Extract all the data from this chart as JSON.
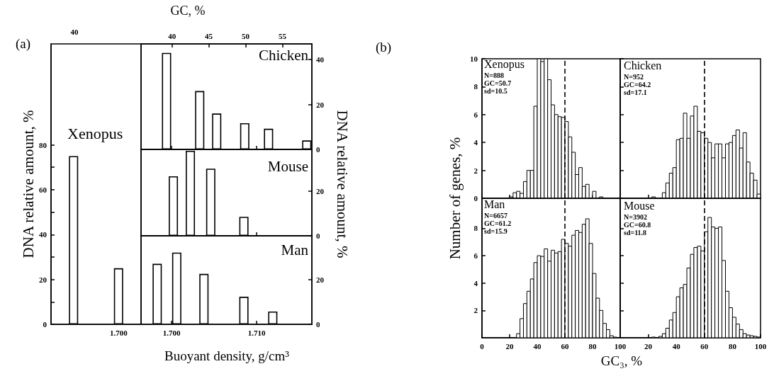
{
  "chart_data": [
    {
      "type": "bar",
      "title": "Xenopus",
      "ylabel": "DNA relative amount, %",
      "annotations": [
        "(a)",
        "40"
      ],
      "categories": [
        null,
        "1.700"
      ],
      "values": [
        75,
        25
      ],
      "color": "#ffffff",
      "ylim": [
        0,
        125
      ],
      "yticks": [
        0,
        {
          "value": 10,
          "label": null
        },
        20,
        {
          "value": 30,
          "label": null
        },
        40,
        {
          "value": 50,
          "label": null
        },
        60,
        {
          "value": 70,
          "label": null
        },
        80
      ]
    },
    {
      "type": "bar",
      "title": "Chicken",
      "x2label": "GC, %",
      "x": [
        1.6994,
        1.7033,
        1.7053,
        1.7086,
        1.7114,
        1.7159
      ],
      "values": [
        43,
        26,
        16,
        11.7,
        9.2,
        4
      ],
      "color": "#ffffff",
      "xlim": [
        1.6964,
        1.7165
      ],
      "xticks": [
        {
          "value": 1.7,
          "label": null
        },
        {
          "value": 1.71,
          "label": null
        }
      ],
      "x2lim": [
        35.8,
        59.0
      ],
      "x2ticks": [
        40,
        45,
        50,
        55
      ],
      "ylim": [
        0,
        47
      ],
      "yticks": [
        0,
        20,
        40
      ],
      "tick_labels": "y"
    },
    {
      "type": "bar",
      "title": "Mouse",
      "ylabel": "DNA relative amount, %",
      "x": [
        1.7002,
        1.7022,
        1.7046,
        1.7085
      ],
      "values": [
        26.6,
        38,
        30,
        8.5
      ],
      "color": "#ffffff",
      "xlim": [
        1.6964,
        1.7165
      ],
      "xticks": [
        {
          "value": 1.7,
          "label": null
        },
        {
          "value": 1.71,
          "label": null
        }
      ],
      "ylim": [
        0,
        38.6
      ],
      "yticks": [
        0,
        20
      ],
      "tick_labels": "y"
    },
    {
      "type": "bar",
      "title": "Man",
      "xlabel": "Buoyant density, g/cm³",
      "x": [
        1.6983,
        1.7006,
        1.7038,
        1.7085,
        1.7119
      ],
      "values": [
        27,
        32,
        22.5,
        12.3,
        5.7
      ],
      "color": "#ffffff",
      "xlim": [
        1.6964,
        1.7165
      ],
      "xticks": [
        {
          "value": 1.7,
          "label": "1.700"
        },
        {
          "value": 1.71,
          "label": "1.710"
        }
      ],
      "ylim": [
        0,
        39.5
      ],
      "yticks": [
        0,
        20
      ]
    },
    {
      "type": "histogram",
      "title": "Xenopus",
      "annotations": [
        "(b)",
        "N=888",
        "GC=50.7",
        "sd=10.5"
      ],
      "color": "#ffffff",
      "bins": [
        0,
        2.5,
        5,
        7.5,
        10,
        12.5,
        15,
        17.5,
        20,
        22.5,
        25,
        27.5,
        30,
        32.5,
        35,
        37.5,
        40,
        42.5,
        45,
        47.5,
        50,
        52.5,
        55,
        57.5,
        60,
        62.5,
        65,
        67.5,
        70,
        72.5,
        75,
        77.5,
        80,
        82.5,
        85,
        87.5,
        90,
        92.5,
        95,
        97.5,
        100
      ],
      "values": [
        0,
        0,
        0,
        0,
        0,
        0,
        0,
        0,
        0.1,
        0.4,
        0.5,
        0.35,
        1.2,
        2.0,
        2.0,
        6.6,
        10,
        9.8,
        10,
        8.5,
        6.7,
        6.0,
        5.85,
        5.8,
        5.5,
        4.4,
        3.3,
        1.7,
        2.2,
        0.85,
        1.0,
        0,
        0.5,
        0,
        0.1,
        0,
        0,
        0,
        0,
        0
      ],
      "xlim": [
        0,
        100
      ],
      "xticks": [
        0,
        20,
        40,
        60,
        80,
        100
      ],
      "ylim": [
        0,
        10
      ],
      "yticks": [
        0,
        2,
        4,
        6,
        8,
        10
      ],
      "tick_labels": "y",
      "ref_lines": [
        {
          "axis": "x",
          "value": 60,
          "line_style": "dashed"
        }
      ]
    },
    {
      "type": "histogram",
      "title": "Chicken",
      "annotations": [
        "N=952",
        "GC=64.2",
        "sd=17.1"
      ],
      "color": "#ffffff",
      "bins": [
        0,
        2.5,
        5,
        7.5,
        10,
        12.5,
        15,
        17.5,
        20,
        22.5,
        25,
        27.5,
        30,
        32.5,
        35,
        37.5,
        40,
        42.5,
        45,
        47.5,
        50,
        52.5,
        55,
        57.5,
        60,
        62.5,
        65,
        67.5,
        70,
        72.5,
        75,
        77.5,
        80,
        82.5,
        85,
        87.5,
        90,
        92.5,
        95,
        97.5,
        100
      ],
      "values": [
        0,
        0,
        0,
        0,
        0,
        0,
        0,
        0,
        0,
        0.1,
        0,
        0,
        0.4,
        1.1,
        1.8,
        2.2,
        4.2,
        4.3,
        6.1,
        4.3,
        5.9,
        6.6,
        4.8,
        4.7,
        4.3,
        4.0,
        2.9,
        3.9,
        3.9,
        2.9,
        3.9,
        4.0,
        4.5,
        4.9,
        3.6,
        4.7,
        2.6,
        1.8,
        1.3,
        0.3
      ],
      "xlim": [
        0,
        100
      ],
      "xticks": [
        0,
        20,
        40,
        60,
        80,
        100
      ],
      "ylim": [
        0,
        10
      ],
      "yticks": [
        0,
        2,
        4,
        6,
        8,
        10
      ],
      "tick_labels": false,
      "ref_lines": [
        {
          "axis": "x",
          "value": 60,
          "line_style": "dashed"
        }
      ]
    },
    {
      "type": "histogram",
      "title": "Man",
      "ylabel": "Number of genes, %",
      "annotations": [
        "N=6657",
        "GC=61.2",
        "sd=15.9"
      ],
      "color": "#ffffff",
      "bins": [
        0,
        2.5,
        5,
        7.5,
        10,
        12.5,
        15,
        17.5,
        20,
        22.5,
        25,
        27.5,
        30,
        32.5,
        35,
        37.5,
        40,
        42.5,
        45,
        47.5,
        50,
        52.5,
        55,
        57.5,
        60,
        62.5,
        65,
        67.5,
        70,
        72.5,
        75,
        77.5,
        80,
        82.5,
        85,
        87.5,
        90,
        92.5,
        95,
        97.5,
        100
      ],
      "values": [
        0,
        0,
        0,
        0,
        0,
        0,
        0,
        0,
        0,
        0,
        0.3,
        1.4,
        2.5,
        3.4,
        4.3,
        5.5,
        6.0,
        5.95,
        6.5,
        5.6,
        6.4,
        6.2,
        6.3,
        7.2,
        6.9,
        6.7,
        7.5,
        7.85,
        7.7,
        8.3,
        8.7,
        6.9,
        4.7,
        2.9,
        2.0,
        1.05,
        0.6,
        0.15,
        0.05,
        0
      ],
      "xlim": [
        0,
        100
      ],
      "xticks": [
        0,
        20,
        40,
        60,
        80,
        100
      ],
      "ylim": [
        0,
        10.2
      ],
      "yticks": [
        2,
        4,
        6,
        8
      ],
      "ref_lines": [
        {
          "axis": "x",
          "value": 60,
          "line_style": "dashed"
        }
      ]
    },
    {
      "type": "histogram",
      "title": "Mouse",
      "xlabel": "GC₃, %",
      "annotations": [
        "N=3902",
        "GC=60.8",
        "sd=11.8"
      ],
      "color": "#ffffff",
      "bins": [
        0,
        2.5,
        5,
        7.5,
        10,
        12.5,
        15,
        17.5,
        20,
        22.5,
        25,
        27.5,
        30,
        32.5,
        35,
        37.5,
        40,
        42.5,
        45,
        47.5,
        50,
        52.5,
        55,
        57.5,
        60,
        62.5,
        65,
        67.5,
        70,
        72.5,
        75,
        77.5,
        80,
        82.5,
        85,
        87.5,
        90,
        92.5,
        95,
        97.5,
        100
      ],
      "values": [
        0,
        0,
        0,
        0,
        0,
        0,
        0,
        0,
        0,
        0.05,
        0,
        0.1,
        0.3,
        0.7,
        1.3,
        1.85,
        3.0,
        3.65,
        3.9,
        5.1,
        6.1,
        6.6,
        6.7,
        6.35,
        7.75,
        8.8,
        8.1,
        8.0,
        8.1,
        5.65,
        3.4,
        2.2,
        1.5,
        1.0,
        0.6,
        0.3,
        0.2,
        0.15,
        0.1,
        0.05
      ],
      "xlim": [
        0,
        100
      ],
      "xticks": [
        {
          "value": 0,
          "label": null
        },
        20,
        40,
        60,
        80,
        100
      ],
      "ylim": [
        0,
        10.2
      ],
      "yticks": [
        2,
        4,
        6,
        8
      ],
      "tick_labels": "x",
      "ref_lines": [
        {
          "axis": "x",
          "value": 60,
          "line_style": "dashed"
        }
      ]
    }
  ]
}
